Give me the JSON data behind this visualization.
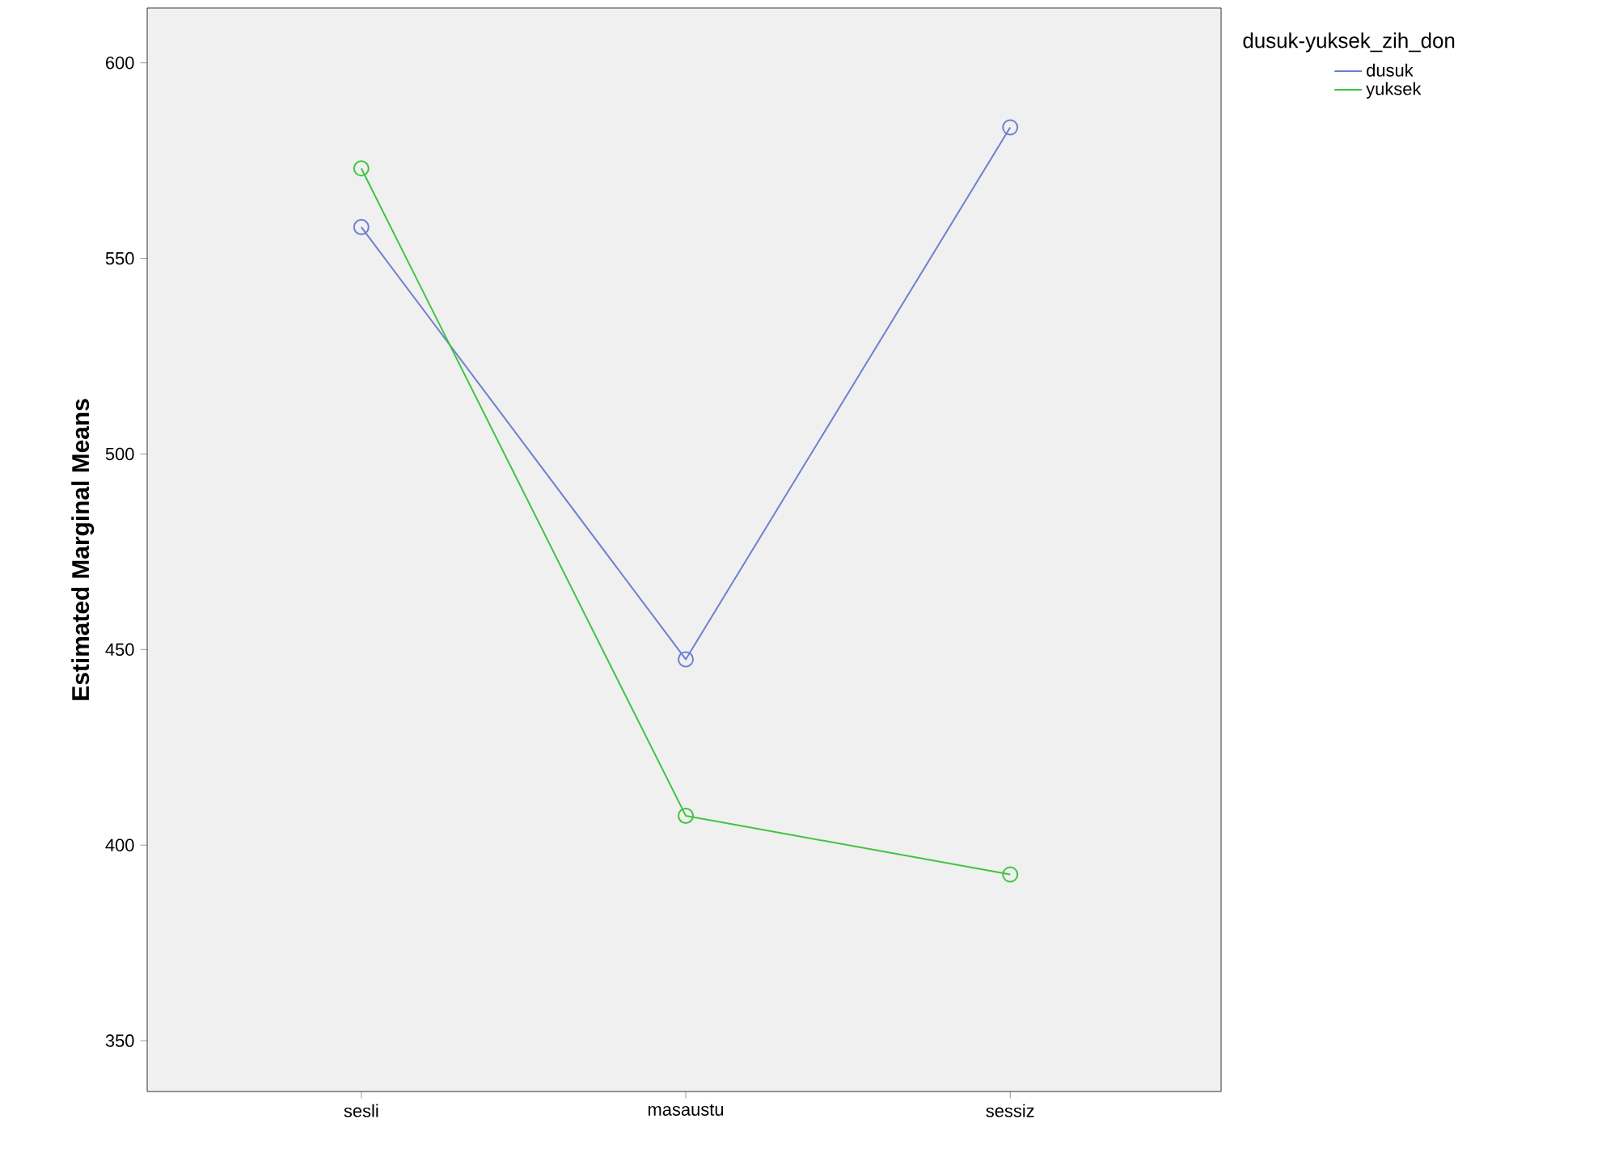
{
  "chart_data": {
    "type": "line",
    "ylabel": "Estimated Marginal Means",
    "legend_title": "dusuk-yuksek_zih_don",
    "categories": [
      "sesli",
      "masaustu",
      "sessiz"
    ],
    "series": [
      {
        "name": "dusuk",
        "color": "#6f7fcf",
        "values": [
          558,
          447.5,
          583.5
        ]
      },
      {
        "name": "yuksek",
        "color": "#3fc43f",
        "values": [
          573,
          407.5,
          392.5
        ]
      }
    ],
    "ylim": [
      337,
      614
    ],
    "yticks": [
      350,
      400,
      450,
      500,
      550,
      600
    ],
    "grid": false,
    "legend": "right",
    "marker": "circle",
    "line_style": "solid"
  }
}
